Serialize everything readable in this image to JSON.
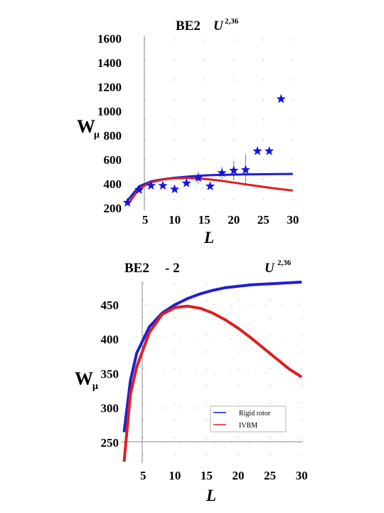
{
  "chart_data": [
    {
      "type": "line",
      "title": "BE2",
      "title_symbol": "U",
      "title_exponent": "2,36",
      "xlabel": "L",
      "ylabel": "W",
      "ylabel_sub": "μ",
      "xlim": [
        1.5,
        30.5
      ],
      "ylim": [
        200,
        1600
      ],
      "xticks": [
        "5",
        "10",
        "15",
        "20",
        "25",
        "30"
      ],
      "yticks": [
        "200",
        "400",
        "600",
        "800",
        "1000",
        "1200",
        "1400",
        "1600"
      ],
      "colors": {
        "rigid": "#1f1fd6",
        "ivbm": "#dd1f1f",
        "exp": "#1515e0"
      },
      "series": [
        {
          "x": [
            2,
            4,
            6,
            8,
            10,
            12,
            14,
            16,
            18,
            20,
            22,
            24,
            26,
            28,
            30
          ],
          "y": [
            262,
            380,
            420,
            438,
            450,
            459,
            466,
            471,
            474,
            476,
            478,
            479,
            480,
            481,
            482
          ]
        },
        {
          "x": [
            2,
            4,
            6,
            8,
            10,
            12,
            14,
            16,
            18,
            20,
            22,
            24,
            26,
            28,
            30
          ],
          "y": [
            225,
            362,
            412,
            436,
            446,
            448,
            444,
            436,
            424,
            410,
            396,
            382,
            368,
            356,
            345
          ]
        }
      ],
      "points": {
        "marker": "star",
        "x": [
          2,
          4,
          6,
          8,
          10,
          12,
          14,
          16,
          18,
          20,
          22,
          24,
          26,
          28
        ],
        "y": [
          245,
          350,
          385,
          385,
          355,
          405,
          450,
          380,
          490,
          510,
          515,
          670,
          670,
          1100
        ],
        "err": [
          0,
          0,
          0,
          0,
          0,
          0,
          50,
          0,
          50,
          80,
          130,
          0,
          0,
          0
        ]
      }
    },
    {
      "type": "line",
      "title": "BE2",
      "title_symbol": "U",
      "title_exponent": "2,36",
      "xlabel": "L",
      "ylabel": "W",
      "ylabel_sub": "μ",
      "xlim": [
        1.5,
        30.2
      ],
      "ylim": [
        220,
        485
      ],
      "xticks": [
        "5",
        "10",
        "15",
        "20",
        "25",
        "30"
      ],
      "yticks": [
        "250",
        "300",
        "350",
        "400",
        "450"
      ],
      "colors": {
        "rigid": "#1f1fd6",
        "ivbm": "#dd1f1f"
      },
      "series": [
        {
          "name": "Rigid rotor",
          "x": [
            2,
            3,
            4,
            6,
            8,
            10,
            12,
            14,
            16,
            18,
            20,
            22,
            24,
            26,
            28,
            30
          ],
          "y": [
            265,
            340,
            380,
            418,
            438,
            450,
            459,
            466,
            471,
            475,
            477,
            479,
            480,
            481,
            482,
            483
          ]
        },
        {
          "name": "IVBM",
          "x": [
            2,
            3,
            4,
            6,
            8,
            10,
            12,
            14,
            16,
            18,
            20,
            22,
            24,
            26,
            28,
            30
          ],
          "y": [
            222,
            320,
            360,
            410,
            436,
            446,
            448,
            445,
            438,
            428,
            416,
            402,
            387,
            372,
            357,
            345
          ]
        }
      ],
      "legend": {
        "position": "bottom-right"
      }
    }
  ]
}
